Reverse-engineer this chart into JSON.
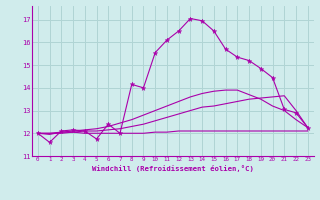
{
  "background_color": "#d0ecec",
  "grid_color": "#b0d4d4",
  "line_color": "#aa00aa",
  "xlabel": "Windchill (Refroidissement éolien,°C)",
  "ylim": [
    11,
    17.6
  ],
  "xlim": [
    -0.5,
    23.5
  ],
  "yticks": [
    11,
    12,
    13,
    14,
    15,
    16,
    17
  ],
  "xticks": [
    0,
    1,
    2,
    3,
    4,
    5,
    6,
    7,
    8,
    9,
    10,
    11,
    12,
    13,
    14,
    15,
    16,
    17,
    18,
    19,
    20,
    21,
    22,
    23
  ],
  "series_flat": [
    12.0,
    11.95,
    12.05,
    12.05,
    12.0,
    12.0,
    12.0,
    12.0,
    12.0,
    12.0,
    12.05,
    12.05,
    12.1,
    12.1,
    12.1,
    12.1,
    12.1,
    12.1,
    12.1,
    12.1,
    12.1,
    12.1,
    12.1,
    12.1
  ],
  "series_rise1": [
    12.0,
    12.0,
    12.0,
    12.05,
    12.1,
    12.1,
    12.15,
    12.2,
    12.3,
    12.4,
    12.55,
    12.7,
    12.85,
    13.0,
    13.15,
    13.2,
    13.3,
    13.4,
    13.5,
    13.55,
    13.6,
    13.65,
    13.0,
    12.25
  ],
  "series_rise2": [
    12.0,
    12.0,
    12.05,
    12.1,
    12.15,
    12.2,
    12.3,
    12.45,
    12.6,
    12.8,
    13.0,
    13.2,
    13.4,
    13.6,
    13.75,
    13.85,
    13.9,
    13.9,
    13.7,
    13.5,
    13.2,
    13.0,
    12.6,
    12.25
  ],
  "series_jagged": [
    12.0,
    11.6,
    12.1,
    12.15,
    12.1,
    11.75,
    12.4,
    12.0,
    14.15,
    14.0,
    15.55,
    16.1,
    16.5,
    17.05,
    16.95,
    16.5,
    15.7,
    15.35,
    15.2,
    14.85,
    14.45,
    13.05,
    12.9,
    12.25
  ]
}
